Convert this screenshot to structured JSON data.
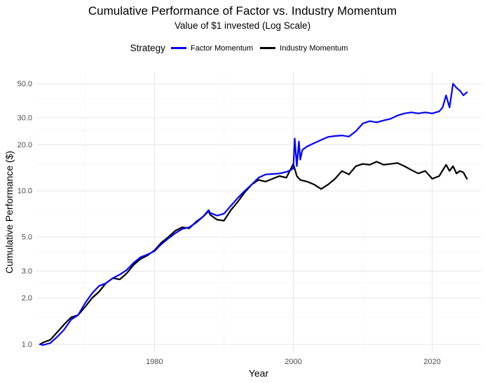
{
  "title": "Cumulative Performance of Factor vs. Industry Momentum",
  "subtitle": "Value of $1 invested (Log Scale)",
  "legend": {
    "title": "Strategy",
    "items": [
      {
        "label": "Factor Momentum",
        "color": "#0000ff"
      },
      {
        "label": "Industry Momentum",
        "color": "#000000"
      }
    ]
  },
  "chart_data": {
    "type": "line",
    "title": "Cumulative Performance of Factor vs. Industry Momentum",
    "subtitle": "Value of $1 invested (Log Scale)",
    "xlabel": "Year",
    "ylabel": "Cumulative Performance ($)",
    "y_scale": "log",
    "xlim": [
      1963,
      2027
    ],
    "ylim": [
      0.88,
      60
    ],
    "x_ticks": [
      1980,
      2000,
      2020
    ],
    "x_tick_labels": [
      "1980",
      "2000",
      "2020"
    ],
    "x_minor_ticks": [
      1970,
      1990,
      2010
    ],
    "y_ticks": [
      1,
      2,
      3,
      5,
      10,
      20,
      30,
      50
    ],
    "y_tick_labels": [
      "1.0",
      "2.0",
      "3.0",
      "5.0",
      "10.0",
      "20.0",
      "30.0",
      "50.0"
    ],
    "y_minor_ticks": [
      1.5,
      2.5,
      4,
      7.5,
      15,
      25,
      40
    ],
    "grid": true,
    "legend_position": "top",
    "series": [
      {
        "name": "Factor Momentum",
        "color": "#0000ff",
        "x": [
          1963.5,
          1964,
          1965,
          1966,
          1967,
          1968,
          1969,
          1970,
          1971,
          1972,
          1973,
          1974,
          1975,
          1976,
          1977,
          1978,
          1979,
          1980,
          1981,
          1982,
          1983,
          1984,
          1985,
          1986,
          1987,
          1987.8,
          1988,
          1989,
          1990,
          1991,
          1992,
          1993,
          1994,
          1995,
          1996,
          1997,
          1998,
          1999,
          1999.5,
          2000,
          2000.2,
          2000.5,
          2000.8,
          2001,
          2001.3,
          2002,
          2003,
          2004,
          2005,
          2006,
          2007,
          2008,
          2009,
          2010,
          2011,
          2012,
          2013,
          2014,
          2015,
          2016,
          2017,
          2018,
          2019,
          2020,
          2021,
          2021.5,
          2022,
          2022.5,
          2023,
          2023.5,
          2024,
          2024.5,
          2025
        ],
        "y": [
          1.0,
          0.99,
          1.02,
          1.12,
          1.25,
          1.45,
          1.55,
          1.85,
          2.15,
          2.4,
          2.5,
          2.7,
          2.85,
          3.05,
          3.4,
          3.7,
          3.85,
          4.05,
          4.5,
          4.9,
          5.3,
          5.65,
          5.8,
          6.2,
          6.8,
          7.5,
          7.2,
          6.9,
          7.1,
          8.0,
          9.0,
          10.0,
          11.0,
          12.2,
          12.8,
          12.9,
          13.0,
          13.3,
          13.6,
          14.0,
          22.0,
          14.5,
          21.0,
          16.0,
          18.5,
          19.5,
          20.5,
          21.5,
          22.5,
          22.8,
          23.0,
          22.6,
          24.5,
          27.5,
          28.5,
          28.0,
          28.8,
          29.5,
          31.0,
          32.0,
          32.5,
          32.0,
          32.5,
          32.0,
          33.0,
          35.0,
          42.0,
          35.0,
          50.0,
          47.0,
          45.0,
          42.0,
          44.0
        ]
      },
      {
        "name": "Industry Momentum",
        "color": "#000000",
        "x": [
          1963.5,
          1964,
          1965,
          1966,
          1967,
          1968,
          1969,
          1970,
          1971,
          1972,
          1973,
          1974,
          1975,
          1976,
          1977,
          1978,
          1979,
          1980,
          1981,
          1982,
          1983,
          1984,
          1985,
          1986,
          1987,
          1987.8,
          1988,
          1989,
          1990,
          1991,
          1992,
          1993,
          1994,
          1995,
          1996,
          1997,
          1998,
          1999,
          2000,
          2000.5,
          2001,
          2002,
          2003,
          2004,
          2005,
          2006,
          2007,
          2008,
          2009,
          2010,
          2011,
          2012,
          2013,
          2014,
          2015,
          2016,
          2017,
          2018,
          2019,
          2020,
          2021,
          2022,
          2022.5,
          2023,
          2023.5,
          2024,
          2024.5,
          2025
        ],
        "y": [
          1.0,
          1.03,
          1.07,
          1.2,
          1.35,
          1.5,
          1.55,
          1.75,
          2.0,
          2.2,
          2.5,
          2.7,
          2.65,
          2.9,
          3.3,
          3.6,
          3.8,
          4.1,
          4.6,
          5.0,
          5.5,
          5.8,
          5.7,
          6.3,
          6.8,
          7.4,
          7.0,
          6.5,
          6.4,
          7.5,
          8.5,
          9.8,
          11.0,
          11.8,
          11.5,
          12.0,
          12.5,
          12.2,
          15.0,
          12.5,
          11.8,
          11.5,
          11.0,
          10.3,
          11.0,
          12.0,
          13.5,
          12.8,
          14.5,
          15.0,
          14.8,
          15.5,
          14.8,
          15.0,
          15.2,
          14.5,
          13.7,
          13.0,
          13.5,
          12.0,
          12.5,
          14.8,
          13.5,
          14.5,
          13.0,
          13.5,
          13.2,
          12.0
        ]
      }
    ]
  }
}
